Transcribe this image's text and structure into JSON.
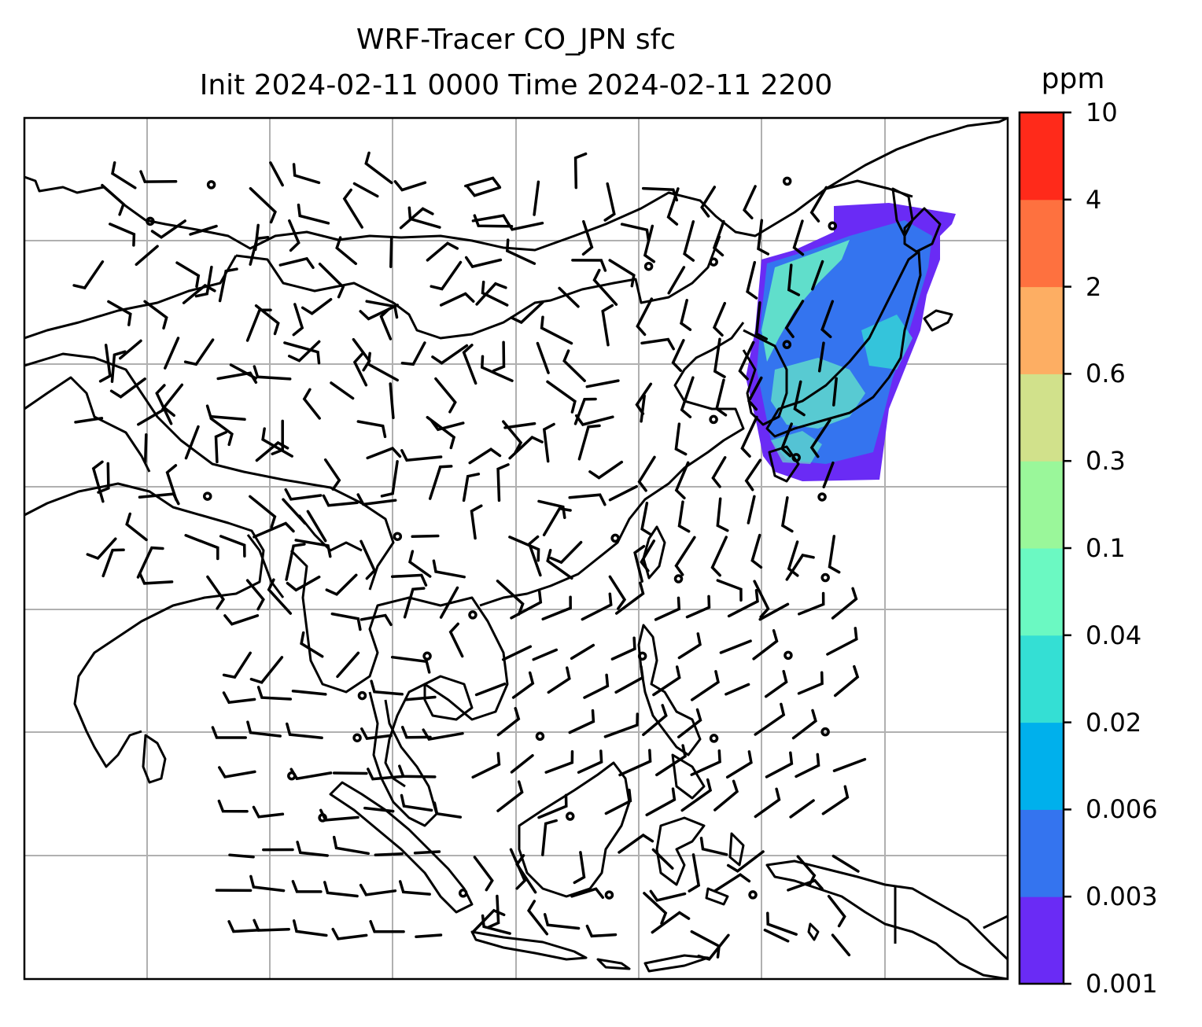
{
  "title": {
    "line1": "WRF-Tracer CO_JPN sfc",
    "line2": "Init 2024-02-11 0000 Time 2024-02-11 2200"
  },
  "colorbar": {
    "unit": "ppm",
    "ticks": [
      "0.001",
      "0.003",
      "0.006",
      "0.02",
      "0.04",
      "0.1",
      "0.3",
      "0.6",
      "2",
      "4",
      "10"
    ],
    "colors": [
      "#6a2bf5",
      "#3474ef",
      "#00b0ec",
      "#34dfd4",
      "#6bf9c2",
      "#9af79a",
      "#d1e18b",
      "#fdae63",
      "#fe713f",
      "#ff2a1a"
    ]
  },
  "map": {
    "coastline_color": "#000000",
    "gridline_color": "#b0b0b0",
    "plume_colors": {
      "low": "#6a2bf5",
      "mid": "#3474ef",
      "high": "#6bf9c2"
    },
    "wind_barb_color": "#000000"
  }
}
